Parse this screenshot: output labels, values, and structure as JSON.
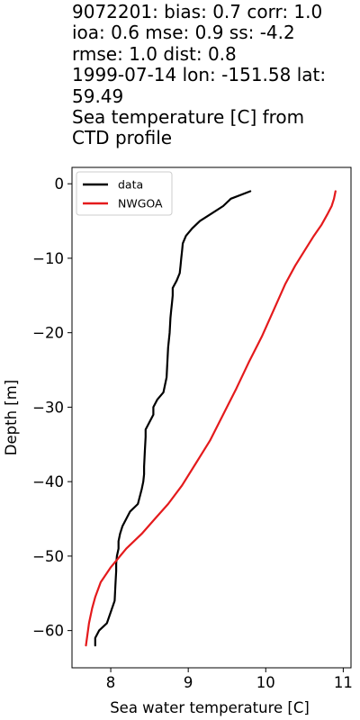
{
  "chart_data": {
    "type": "line",
    "title_lines": [
      "9072201: bias: 0.7  corr: 1.0",
      " ioa: 0.6  mse: 0.9  ss: -4.2",
      "rmse: 1.0  dist: 0.8",
      "1999-07-14 lon: -151.58 lat:",
      "59.49",
      "Sea temperature [C] from",
      "CTD profile"
    ],
    "xlabel": "Sea water temperature [C]",
    "ylabel": "Depth [m]",
    "xlim": [
      7.5,
      11.1
    ],
    "ylim": [
      -65,
      2.2
    ],
    "xticks": [
      8,
      9,
      10,
      11
    ],
    "yticks": [
      0,
      -10,
      -20,
      -30,
      -40,
      -50,
      -60
    ],
    "legend_position": "upper-left",
    "series": [
      {
        "name": "data",
        "color": "#000000",
        "x": [
          9.8,
          9.55,
          9.45,
          9.3,
          9.15,
          9.05,
          8.97,
          8.93,
          8.92,
          8.91,
          8.9,
          8.89,
          8.85,
          8.8,
          8.8,
          8.79,
          8.78,
          8.77,
          8.76,
          8.74,
          8.72,
          8.68,
          8.6,
          8.55,
          8.55,
          8.5,
          8.45,
          8.45,
          8.44,
          8.43,
          8.43,
          8.42,
          8.4,
          8.35,
          8.25,
          8.2,
          8.15,
          8.12,
          8.1,
          8.1,
          8.08,
          8.07,
          8.07,
          8.06,
          8.05,
          7.95,
          7.85,
          7.8,
          7.8
        ],
        "y": [
          -1,
          -2,
          -3,
          -4,
          -5,
          -6,
          -7,
          -8,
          -9,
          -10,
          -11,
          -12,
          -13,
          -14,
          -15,
          -16,
          -17,
          -18,
          -20,
          -22,
          -26,
          -28,
          -29,
          -30,
          -31,
          -32,
          -33,
          -34,
          -36,
          -38,
          -39,
          -40,
          -41,
          -43,
          -44,
          -45,
          -46,
          -47,
          -48,
          -49,
          -50,
          -51,
          -52,
          -54,
          -56,
          -59,
          -60,
          -61,
          -62
        ]
      },
      {
        "name": "NWGOA",
        "color": "#e41a1c",
        "x": [
          10.9,
          10.88,
          10.85,
          10.8,
          10.72,
          10.62,
          10.5,
          10.38,
          10.25,
          10.1,
          9.95,
          9.78,
          9.62,
          9.45,
          9.28,
          9.1,
          8.92,
          8.74,
          8.57,
          8.4,
          8.2,
          8.0,
          7.87,
          7.8,
          7.76,
          7.72,
          7.7,
          7.68
        ],
        "y": [
          -1,
          -2,
          -3,
          -4,
          -5.5,
          -7,
          -9,
          -11,
          -13.5,
          -17,
          -20.5,
          -24,
          -27.5,
          -31,
          -34.5,
          -37.5,
          -40.5,
          -43,
          -45,
          -47,
          -49,
          -51.5,
          -53.5,
          -55.5,
          -57,
          -59,
          -60.5,
          -62
        ]
      }
    ]
  }
}
